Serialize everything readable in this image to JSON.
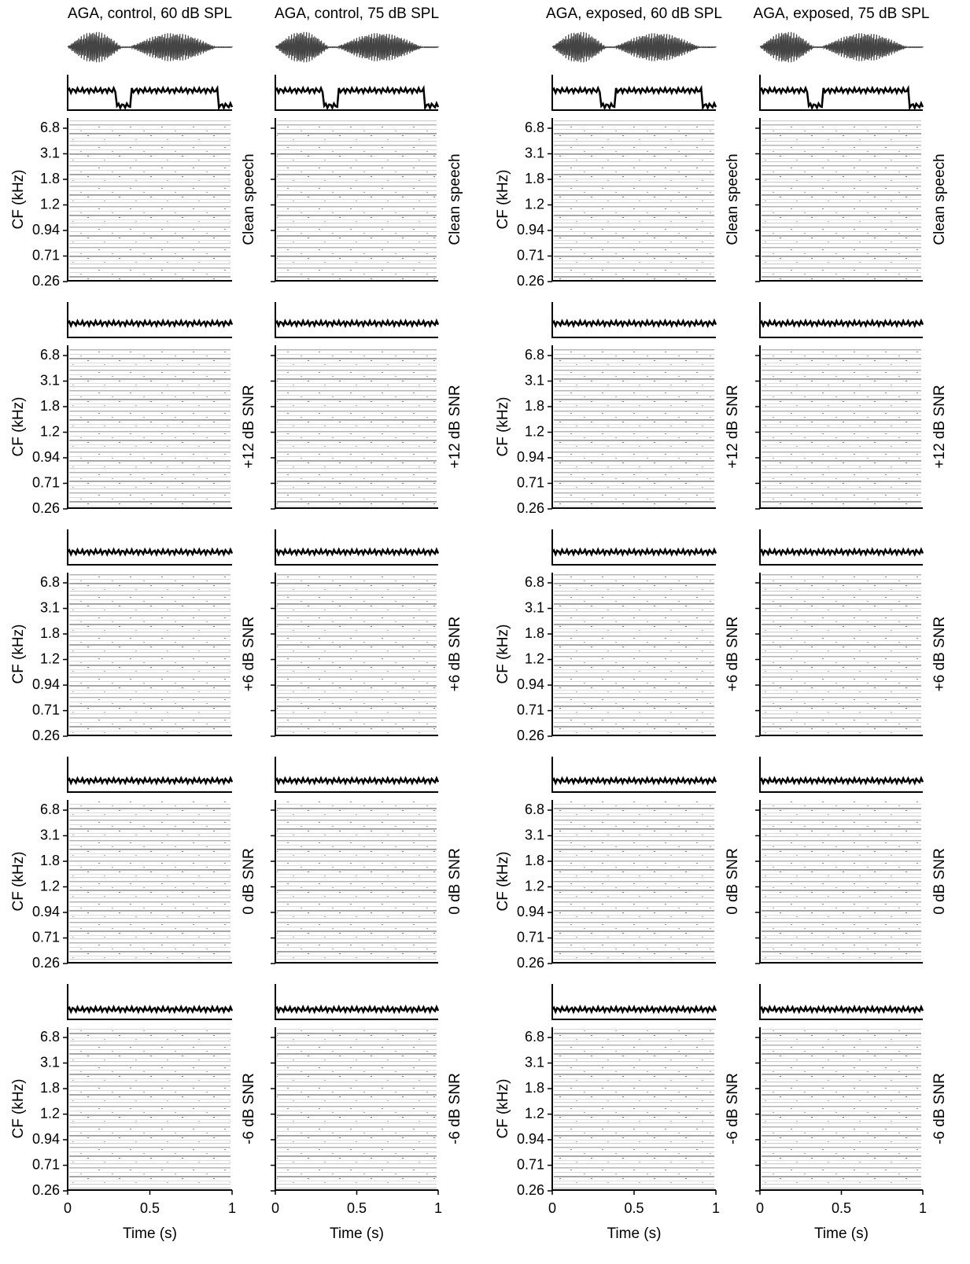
{
  "columns": [
    {
      "title": "AGA, control, 60 dB SPL",
      "color": "#000000"
    },
    {
      "title": "AGA, control, 75 dB SPL",
      "color": "#000000"
    },
    {
      "title": "AGA, exposed, 60 dB SPL",
      "color": "#ff0000"
    },
    {
      "title": "AGA, exposed, 75 dB SPL",
      "color": "#ff0000"
    }
  ],
  "rows": [
    "Clean speech",
    "+12 dB SNR",
    "+6 dB SNR",
    "0 dB SNR",
    "-6 dB SNR"
  ],
  "y_axis": {
    "label": "CF (kHz)",
    "ticks": [
      "6.8",
      "3.1",
      "1.8",
      "1.2",
      "0.94",
      "0.71",
      "0.26"
    ]
  },
  "x_axis": {
    "label": "Time (s)",
    "xlim": [
      0,
      1
    ],
    "xticks": [
      0,
      0.5,
      1
    ]
  }
}
